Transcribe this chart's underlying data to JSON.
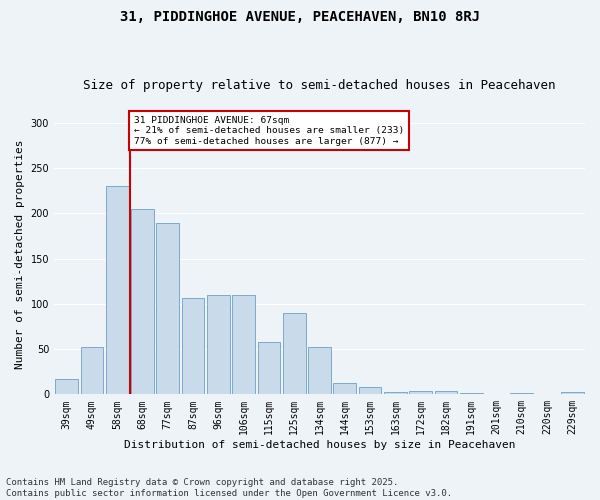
{
  "title": "31, PIDDINGHOE AVENUE, PEACEHAVEN, BN10 8RJ",
  "subtitle": "Size of property relative to semi-detached houses in Peacehaven",
  "xlabel": "Distribution of semi-detached houses by size in Peacehaven",
  "ylabel": "Number of semi-detached properties",
  "categories": [
    "39sqm",
    "49sqm",
    "58sqm",
    "68sqm",
    "77sqm",
    "87sqm",
    "96sqm",
    "106sqm",
    "115sqm",
    "125sqm",
    "134sqm",
    "144sqm",
    "153sqm",
    "163sqm",
    "172sqm",
    "182sqm",
    "191sqm",
    "201sqm",
    "210sqm",
    "220sqm",
    "229sqm"
  ],
  "values": [
    17,
    52,
    230,
    205,
    190,
    107,
    110,
    110,
    58,
    90,
    52,
    12,
    8,
    3,
    4,
    4,
    1,
    0,
    1,
    0,
    3
  ],
  "bar_color": "#c9daea",
  "bar_edge_color": "#7aaac8",
  "vline_x_idx": 3,
  "property_name": "31 PIDDINGHOE AVENUE: 67sqm",
  "pct_smaller": 21,
  "pct_larger": 77,
  "n_smaller": 233,
  "n_larger": 877,
  "annotation_box_color": "#cc0000",
  "vline_color": "#cc0000",
  "ylim": [
    0,
    310
  ],
  "yticks": [
    0,
    50,
    100,
    150,
    200,
    250,
    300
  ],
  "bg_color": "#eef3f8",
  "grid_color": "#ffffff",
  "footer": "Contains HM Land Registry data © Crown copyright and database right 2025.\nContains public sector information licensed under the Open Government Licence v3.0.",
  "title_fontsize": 10,
  "subtitle_fontsize": 9,
  "label_fontsize": 8,
  "tick_fontsize": 7,
  "footer_fontsize": 6.5
}
